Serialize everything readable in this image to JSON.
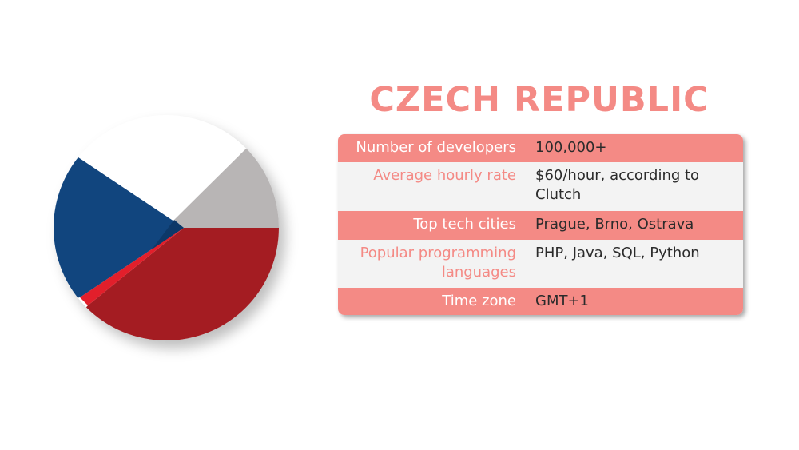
{
  "title": "CZECH REPUBLIC",
  "colors": {
    "accent": "#f48a85",
    "row_alt": "#f3f3f3",
    "flag_blue": "#11457e",
    "flag_red": "#a41c22",
    "flag_bright_red": "#e21f2b",
    "flag_gray": "#b8b5b5",
    "flag_white": "#ffffff"
  },
  "flag_icon": "czech-flag-circle",
  "rows": [
    {
      "label": "Number of developers",
      "value": "100,000+"
    },
    {
      "label": "Average hourly rate",
      "value": "$60/hour, according to Clutch"
    },
    {
      "label": "Top tech cities",
      "value": "Prague, Brno, Ostrava"
    },
    {
      "label": "Popular programming languages",
      "value": "PHP, Java, SQL, Python"
    },
    {
      "label": "Time zone",
      "value": "GMT+1"
    }
  ]
}
